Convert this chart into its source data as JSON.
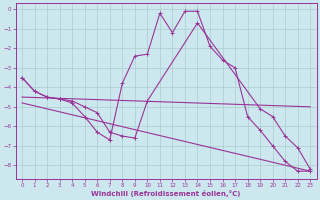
{
  "bg_color": "#cce8ee",
  "grid_color": "#aacccc",
  "line_color": "#993399",
  "xlabel": "Windchill (Refroidissement éolien,°C)",
  "ylim": [
    -8.7,
    0.3
  ],
  "xlim": [
    -0.5,
    23.5
  ],
  "yticks": [
    0,
    -1,
    -2,
    -3,
    -4,
    -5,
    -6,
    -7,
    -8
  ],
  "xticks": [
    0,
    1,
    2,
    3,
    4,
    5,
    6,
    7,
    8,
    9,
    10,
    11,
    12,
    13,
    14,
    15,
    16,
    17,
    18,
    19,
    20,
    21,
    22,
    23
  ],
  "line1_x": [
    0,
    1,
    2,
    3,
    4,
    5,
    6,
    7,
    8,
    9,
    10,
    11,
    12,
    13,
    14,
    15,
    16,
    17,
    18,
    19,
    20,
    21,
    22,
    23
  ],
  "line1_y": [
    -3.5,
    -4.2,
    -4.5,
    -4.6,
    -4.8,
    -5.5,
    -6.3,
    -6.7,
    -3.8,
    -2.4,
    -2.3,
    -0.2,
    -1.2,
    -0.1,
    -0.1,
    -1.9,
    -2.6,
    -3.0,
    -5.5,
    -6.2,
    -7.0,
    -7.8,
    -8.3,
    -8.3
  ],
  "line2_x": [
    0,
    1,
    2,
    3,
    4,
    5,
    6,
    7,
    8,
    9,
    10,
    14,
    19,
    20,
    21,
    22,
    23
  ],
  "line2_y": [
    -3.5,
    -4.2,
    -4.5,
    -4.6,
    -4.7,
    -5.0,
    -5.3,
    -6.3,
    -6.5,
    -6.6,
    -4.7,
    -0.7,
    -5.1,
    -5.5,
    -6.5,
    -7.1,
    -8.2
  ],
  "line3_x": [
    0,
    23
  ],
  "line3_y": [
    -4.5,
    -5.0
  ],
  "line4_x": [
    0,
    23
  ],
  "line4_y": [
    -4.8,
    -8.3
  ]
}
